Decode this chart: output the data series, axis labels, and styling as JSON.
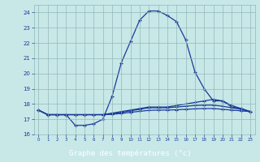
{
  "title": "Graphe des températures (°c)",
  "bg_color": "#c8e8e8",
  "plot_bg_color": "#c8e8e8",
  "title_bg_color": "#2040a0",
  "title_text_color": "#ffffff",
  "line_color": "#1a3a9a",
  "grid_color": "#90b8b8",
  "xlim": [
    -0.5,
    23.5
  ],
  "ylim": [
    16,
    24.5
  ],
  "yticks": [
    16,
    17,
    18,
    19,
    20,
    21,
    22,
    23,
    24
  ],
  "xticks": [
    0,
    1,
    2,
    3,
    4,
    5,
    6,
    7,
    8,
    9,
    10,
    11,
    12,
    13,
    14,
    15,
    16,
    17,
    18,
    19,
    20,
    21,
    22,
    23
  ],
  "line1_x": [
    0,
    1,
    2,
    3,
    4,
    5,
    6,
    7,
    8,
    9,
    10,
    11,
    12,
    13,
    14,
    15,
    16,
    17,
    18,
    19,
    20,
    21,
    22,
    23
  ],
  "line1_y": [
    17.6,
    17.3,
    17.3,
    17.3,
    16.6,
    16.6,
    16.7,
    17.0,
    18.5,
    20.7,
    22.1,
    23.5,
    24.1,
    24.1,
    23.8,
    23.4,
    22.2,
    20.1,
    19.0,
    18.2,
    18.2,
    17.8,
    17.7,
    17.5
  ],
  "line2_x": [
    0,
    1,
    2,
    3,
    4,
    5,
    6,
    7,
    8,
    9,
    10,
    11,
    12,
    13,
    14,
    15,
    16,
    17,
    18,
    19,
    20,
    21,
    22,
    23
  ],
  "line2_y": [
    17.6,
    17.3,
    17.3,
    17.3,
    17.3,
    17.3,
    17.3,
    17.3,
    17.4,
    17.5,
    17.6,
    17.7,
    17.8,
    17.8,
    17.8,
    17.9,
    18.0,
    18.1,
    18.2,
    18.3,
    18.2,
    17.9,
    17.7,
    17.5
  ],
  "line3_x": [
    0,
    1,
    2,
    3,
    4,
    5,
    6,
    7,
    8,
    9,
    10,
    11,
    12,
    13,
    14,
    15,
    16,
    17,
    18,
    19,
    20,
    21,
    22,
    23
  ],
  "line3_y": [
    17.6,
    17.3,
    17.3,
    17.3,
    17.3,
    17.3,
    17.3,
    17.3,
    17.35,
    17.45,
    17.55,
    17.65,
    17.75,
    17.75,
    17.75,
    17.8,
    17.85,
    17.9,
    17.92,
    17.92,
    17.85,
    17.75,
    17.65,
    17.5
  ],
  "line4_x": [
    0,
    1,
    2,
    3,
    4,
    5,
    6,
    7,
    8,
    9,
    10,
    11,
    12,
    13,
    14,
    15,
    16,
    17,
    18,
    19,
    20,
    21,
    22,
    23
  ],
  "line4_y": [
    17.6,
    17.3,
    17.3,
    17.3,
    17.3,
    17.3,
    17.3,
    17.3,
    17.32,
    17.38,
    17.45,
    17.52,
    17.58,
    17.6,
    17.6,
    17.62,
    17.65,
    17.68,
    17.7,
    17.7,
    17.65,
    17.6,
    17.55,
    17.5
  ]
}
